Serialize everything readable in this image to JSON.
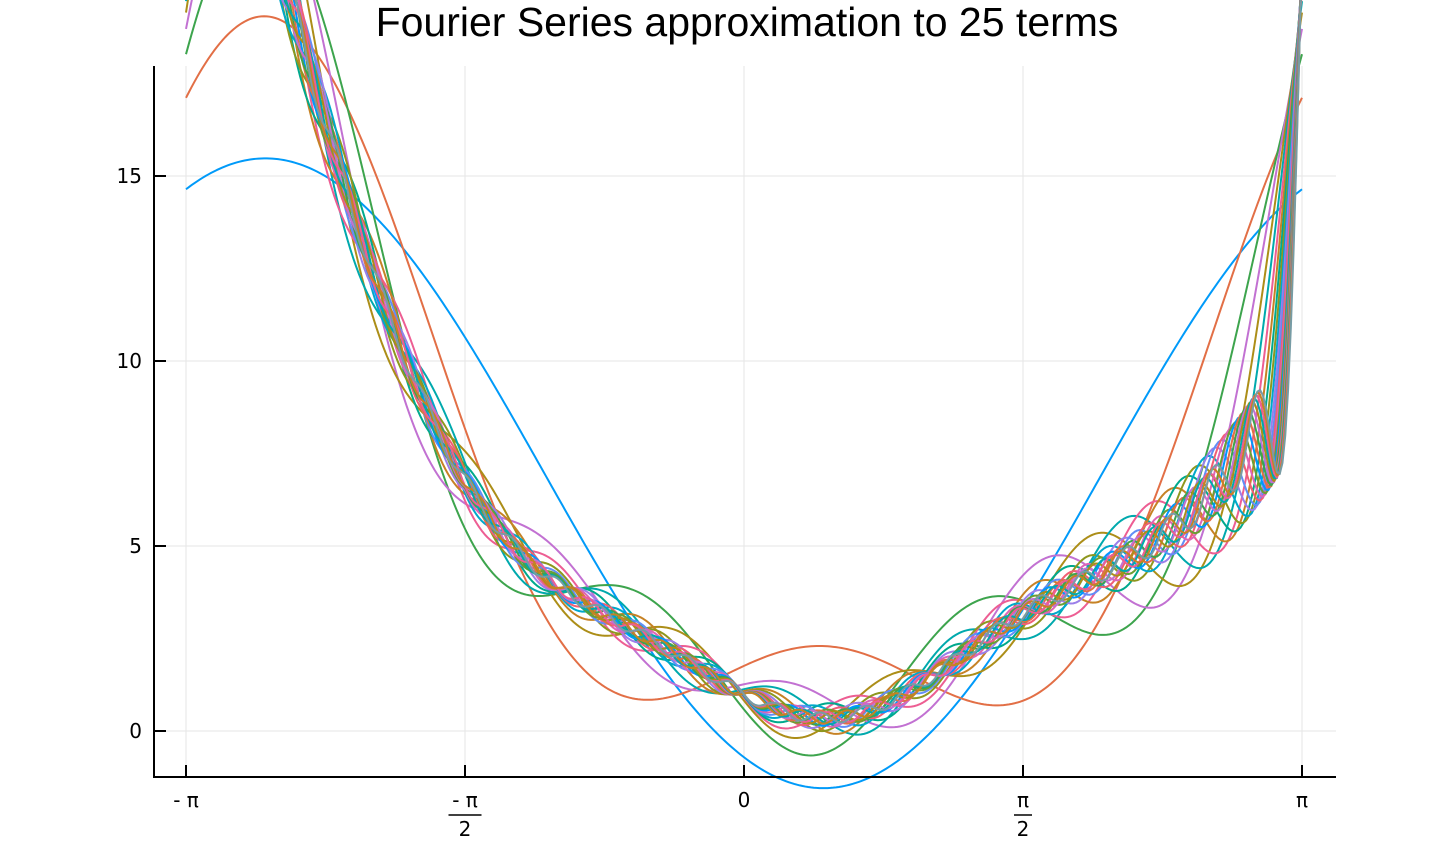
{
  "chart_data": {
    "type": "line",
    "title": "Fourier Series approximation to 25 terms",
    "xlabel": "",
    "ylabel": "",
    "xlim": [
      -3.1416,
      3.1416
    ],
    "ylim": [
      -1.2,
      18
    ],
    "grid": true,
    "legend": "none",
    "x_ticks": [
      {
        "value": -3.1416,
        "num": "- π",
        "den": ""
      },
      {
        "value": -1.5708,
        "num": "- π",
        "den": "2"
      },
      {
        "value": 0,
        "num": "0",
        "den": ""
      },
      {
        "value": 1.5708,
        "num": "π",
        "den": "2"
      },
      {
        "value": 3.1416,
        "num": "π",
        "den": ""
      }
    ],
    "y_ticks": [
      {
        "value": 0,
        "label": "0"
      },
      {
        "value": 5,
        "label": "5"
      },
      {
        "value": 10,
        "label": "10"
      },
      {
        "value": 15,
        "label": "15"
      }
    ],
    "series_count": 25,
    "series_colors": [
      "#009af9",
      "#e26f46",
      "#3da44d",
      "#c271d2",
      "#ac8e18",
      "#00a9ad",
      "#ed5e93",
      "#c68225",
      "#00a98d",
      "#8e971e",
      "#00a8cb",
      "#9b7fe9",
      "#618df6",
      "#f05f73",
      "#dd65b6",
      "#6c9e33",
      "#0097ff",
      "#e26f46",
      "#3da44d",
      "#c271d2",
      "#ac8e18",
      "#00a9ad",
      "#ed5e93",
      "#c68225",
      "#779ca5"
    ],
    "function": "f(x) = x^2 + e^(-x) - 0.5*sin(3x)",
    "x_samples": 400
  }
}
